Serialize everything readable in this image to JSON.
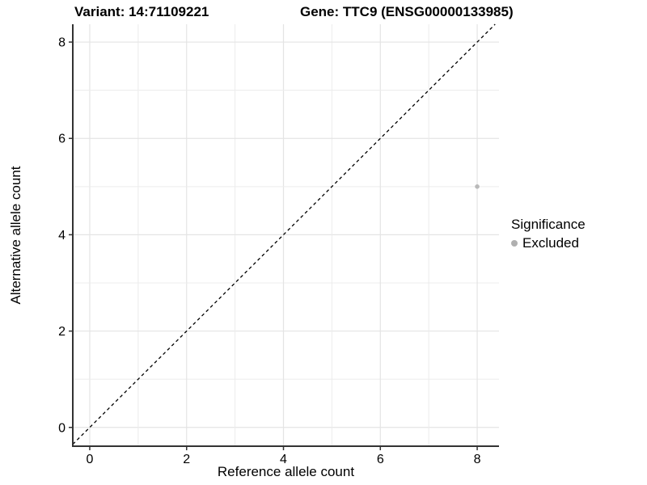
{
  "chart_data": {
    "type": "scatter",
    "title_left": "Variant: 14:71109221",
    "title_right": "Gene: TTC9 (ENSG00000133985)",
    "xlabel": "Reference allele count",
    "ylabel": "Alternative allele count",
    "xlim": [
      -0.35,
      8.45
    ],
    "ylim": [
      -0.39,
      8.37
    ],
    "x_ticks": [
      0,
      2,
      4,
      6,
      8
    ],
    "y_ticks": [
      0,
      2,
      4,
      6,
      8
    ],
    "gridlines": [
      0,
      1,
      2,
      3,
      4,
      5,
      6,
      7,
      8
    ],
    "grid_on": true,
    "identity_line": {
      "equation": "y = x",
      "style": "dashed",
      "color": "#000000"
    },
    "series": [
      {
        "name": "Excluded",
        "color": "#b9b9b9",
        "points": [
          {
            "x": 8,
            "y": 5
          }
        ]
      }
    ],
    "legend": {
      "title": "Significance",
      "position": "right",
      "items": [
        {
          "label": "Excluded",
          "color": "#b0b0b0"
        }
      ]
    },
    "colors": {
      "grid_major": "#e4e4e4",
      "grid_minor": "#ececec",
      "axis_line": "#333333",
      "background": "#ffffff"
    }
  }
}
